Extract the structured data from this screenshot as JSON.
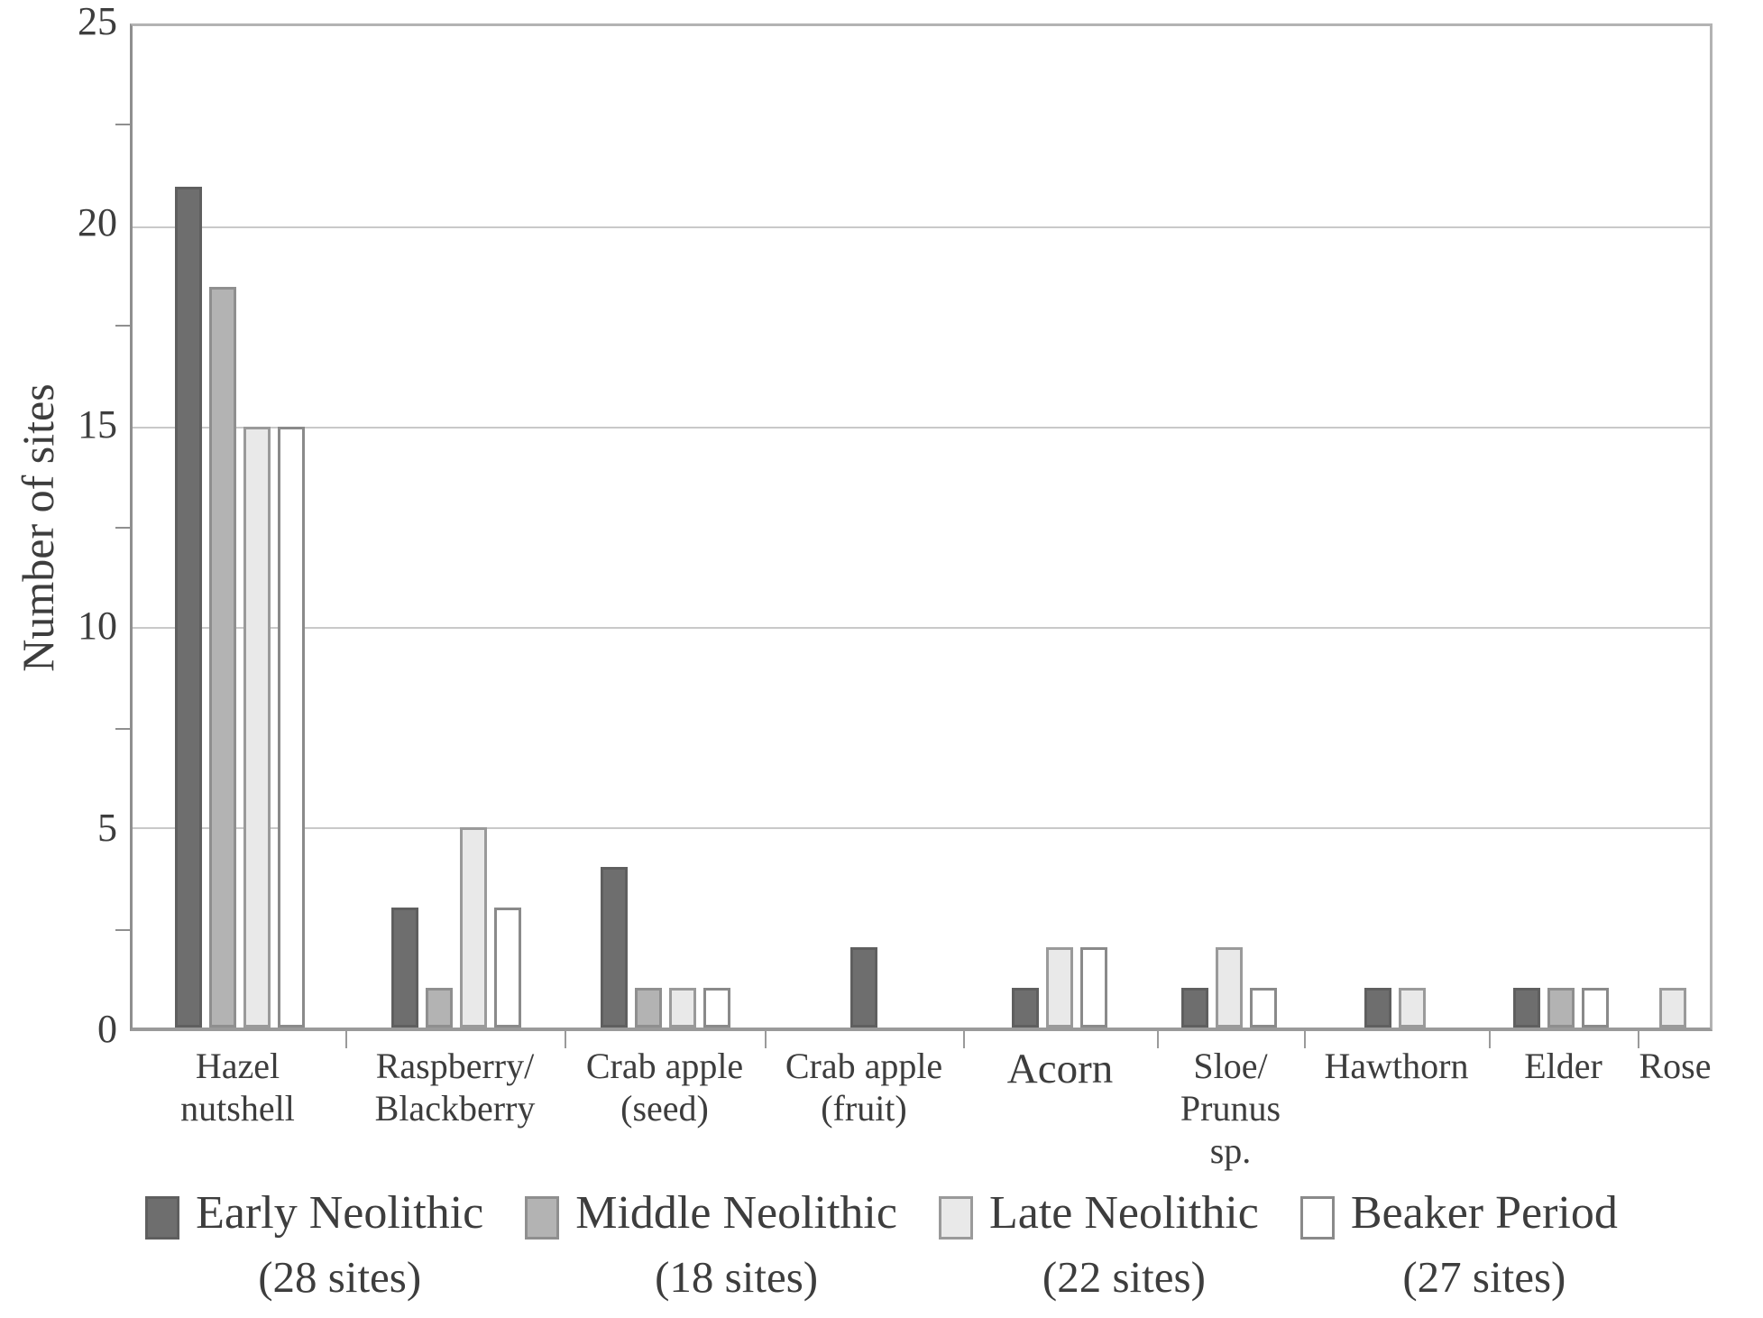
{
  "chart_data": {
    "type": "bar",
    "title": "",
    "ylabel": "Number of sites",
    "ylim": [
      0,
      25
    ],
    "yticks": [
      0,
      5,
      10,
      15,
      20,
      25
    ],
    "minor_ticks": [
      2.5,
      7.5,
      12.5,
      17.5,
      22.5
    ],
    "grid": "horizontal major gridlines on",
    "legend_position": "bottom",
    "frame": "full box around plot area",
    "categories": [
      {
        "lines": [
          "Hazel",
          "nutshell"
        ],
        "large": false
      },
      {
        "lines": [
          "Raspberry/",
          "Blackberry"
        ],
        "large": false
      },
      {
        "lines": [
          "Crab apple",
          "(seed)"
        ],
        "large": false
      },
      {
        "lines": [
          "Crab apple",
          "(fruit)"
        ],
        "large": false
      },
      {
        "lines": [
          "Acorn"
        ],
        "large": true
      },
      {
        "lines": [
          "Sloe/",
          "Prunus sp."
        ],
        "large": false
      },
      {
        "lines": [
          "Hawthorn"
        ],
        "large": false
      },
      {
        "lines": [
          "Elder"
        ],
        "large": false
      },
      {
        "lines": [
          "Rose"
        ],
        "large": false
      }
    ],
    "series": [
      {
        "name": "Early Neolithic",
        "sites_label": "(28 sites)",
        "fill": "#6e6e6e",
        "border": "#5f5f5f",
        "values": [
          21,
          3,
          4,
          2,
          1,
          1,
          1,
          1,
          0
        ]
      },
      {
        "name": "Middle Neolithic",
        "sites_label": "(18 sites)",
        "fill": "#b3b3b3",
        "border": "#8f8f8f",
        "values": [
          18.5,
          1,
          1,
          0,
          0,
          0,
          0,
          1,
          0
        ]
      },
      {
        "name": "Late Neolithic",
        "sites_label": "(22 sites)",
        "fill": "#e9e9e9",
        "border": "#9a9a9a",
        "values": [
          15,
          5,
          1,
          0,
          2,
          2,
          1,
          0,
          1
        ]
      },
      {
        "name": "Beaker Period",
        "sites_label": "(27 sites)",
        "fill": "#ffffff",
        "border": "#8a8a8a",
        "values": [
          15,
          3,
          1,
          0,
          2,
          1,
          0,
          1,
          0
        ]
      }
    ],
    "layout": {
      "col_weights": [
        239,
        243,
        222,
        220,
        215,
        163,
        205,
        165,
        83
      ],
      "gridline_color": "#c9c9c9",
      "axis_color": "#8f8f8f",
      "text_color": "#3d3d3d"
    }
  }
}
